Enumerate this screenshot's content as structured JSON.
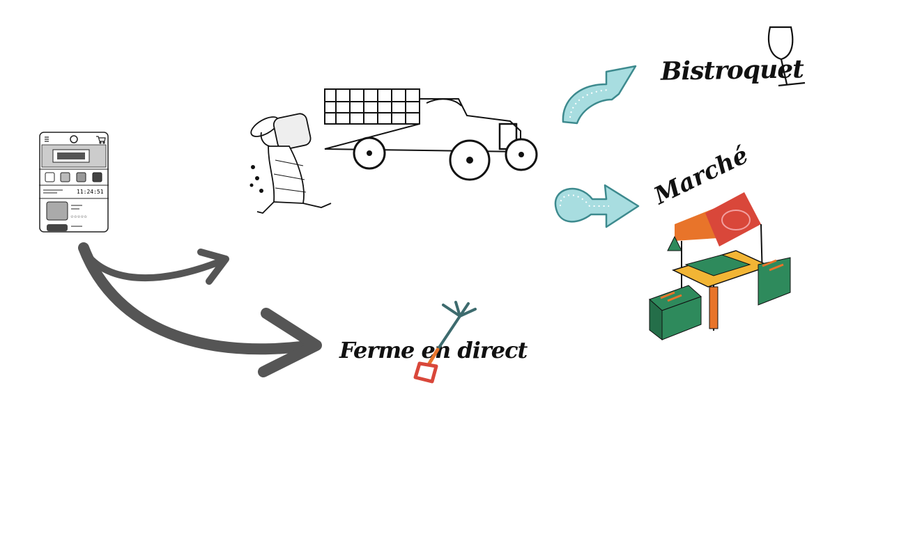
{
  "destinations": {
    "bistroquet": "Bistroquet",
    "marche": "Marché",
    "ferme": "Ferme en direct"
  },
  "phone": {
    "clock": "11:24:51",
    "rating_stars": "☆☆☆☆☆"
  },
  "icons": [
    "menu-icon",
    "logo-icon",
    "cart-icon",
    "wine-glass-icon",
    "pitchfork-icon"
  ],
  "colors": {
    "arrow_gray": "#555555",
    "arrow_teal": "#a8dde0",
    "market_orange": "#e8742a",
    "market_red": "#d9473a",
    "market_green": "#2e8a5c",
    "market_yellow": "#f2b535"
  }
}
